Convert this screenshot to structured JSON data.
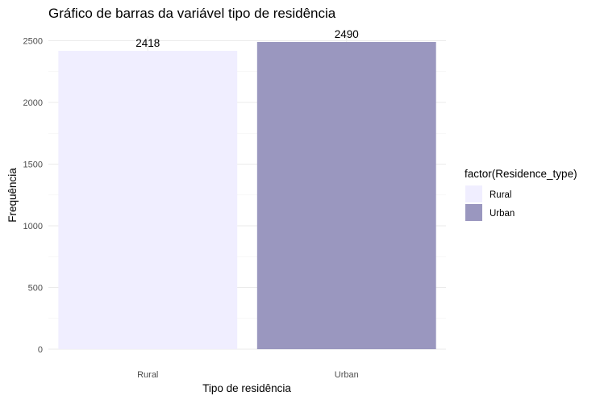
{
  "chart_data": {
    "type": "bar",
    "title": "Gráfico de barras da variável tipo de residência",
    "xlabel": "Tipo de residência",
    "ylabel": "Frequência",
    "categories": [
      "Rural",
      "Urban"
    ],
    "values": [
      2418,
      2490
    ],
    "data_labels": [
      "2418",
      "2490"
    ],
    "colors": [
      "#f0eeff",
      "#9a97bf"
    ],
    "ylim": [
      0,
      2550
    ],
    "yticks": [
      0,
      500,
      1000,
      1500,
      2000,
      2500
    ],
    "ytick_labels": [
      "0",
      "500",
      "1000",
      "1500",
      "2000",
      "2500"
    ],
    "grid": true,
    "legend": {
      "title": "factor(Residence_type)",
      "placement": "right",
      "entries": [
        "Rural",
        "Urban"
      ]
    }
  }
}
